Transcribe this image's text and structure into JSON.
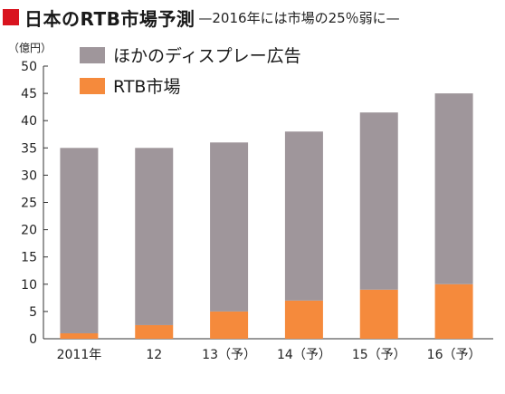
{
  "title": "日本のRTB市場予測",
  "subtitle": "—2016年には市場の25％弱に—",
  "unit_label": "（億円）",
  "colors": {
    "title_marker": "#d9141f",
    "other_display": "#9f969b",
    "rtb": "#f58a3c",
    "axis": "#333333"
  },
  "chart_data": {
    "type": "bar",
    "stacked": true,
    "categories": [
      "2011年",
      "12",
      "13（予）",
      "14（予）",
      "15（予）",
      "16（予）"
    ],
    "series": [
      {
        "name": "RTB市場",
        "values": [
          1,
          2.5,
          5,
          7,
          9,
          10
        ]
      },
      {
        "name": "ほかのディスプレー広告",
        "values": [
          34,
          32.5,
          31,
          31,
          32.5,
          35
        ]
      }
    ],
    "ylim": [
      0,
      50
    ],
    "yticks": [
      0,
      5,
      10,
      15,
      20,
      25,
      30,
      35,
      40,
      45,
      50
    ],
    "grid": false,
    "legend_position": "top-left"
  }
}
